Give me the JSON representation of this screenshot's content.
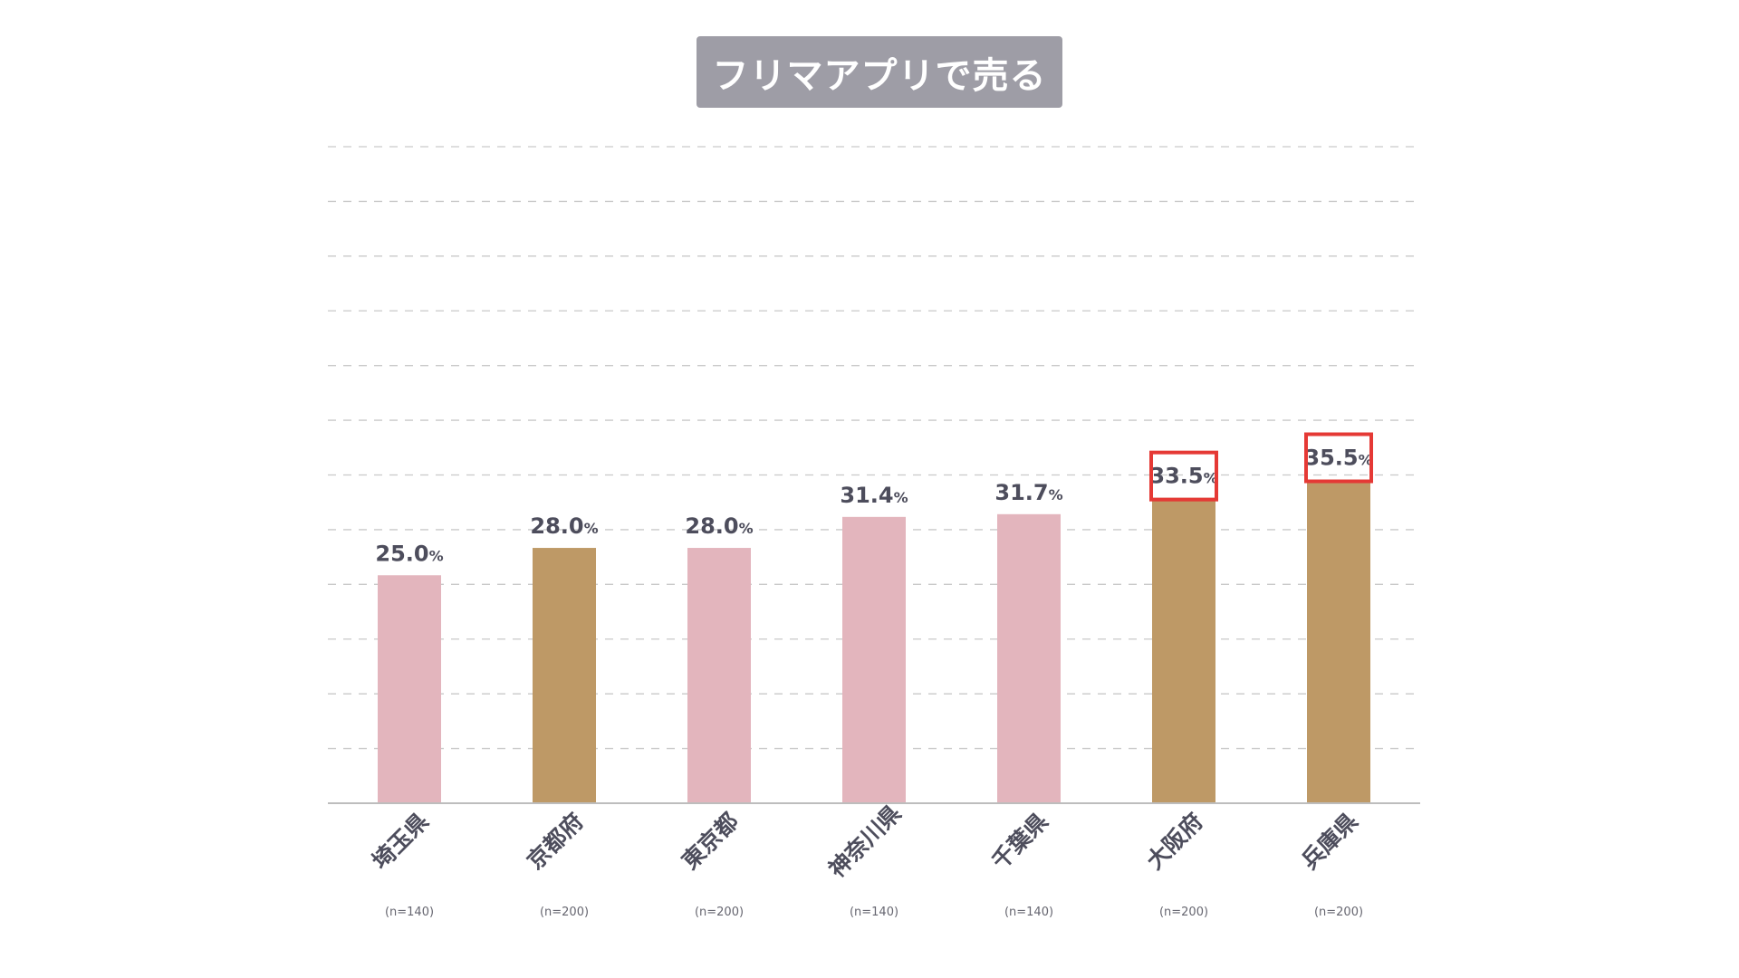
{
  "chart_data": {
    "type": "bar",
    "title": "フリマアプリで売る",
    "categories": [
      "埼玉県",
      "京都府",
      "東京都",
      "神奈川県",
      "千葉県",
      "大阪府",
      "兵庫県"
    ],
    "sample_sizes": [
      "(n=140)",
      "(n=200)",
      "(n=200)",
      "(n=140)",
      "(n=140)",
      "(n=200)",
      "(n=200)"
    ],
    "values": [
      25.0,
      28.0,
      28.0,
      31.4,
      31.7,
      33.5,
      35.5
    ],
    "value_labels": [
      "25.0",
      "28.0",
      "28.0",
      "31.4",
      "31.7",
      "33.5",
      "35.5"
    ],
    "value_unit": "%",
    "bar_colors": [
      "#e3b5bd",
      "#be9966",
      "#e3b5bd",
      "#e3b5bd",
      "#e3b5bd",
      "#be9966",
      "#be9966"
    ],
    "highlighted": [
      false,
      false,
      false,
      false,
      false,
      true,
      true
    ],
    "highlight_color": "#e53935",
    "ylim": [
      0,
      72
    ],
    "grid_step": 6,
    "grid": true,
    "xlabel": "",
    "ylabel": ""
  }
}
